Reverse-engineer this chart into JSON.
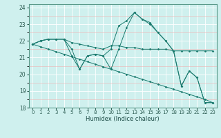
{
  "xlabel": "Humidex (Indice chaleur)",
  "bg_color": "#cff0ee",
  "grid_color": "#ffffff",
  "line_color": "#1a7a6e",
  "xlim": [
    -0.5,
    23.5
  ],
  "ylim": [
    18,
    24.2
  ],
  "yticks": [
    18,
    19,
    20,
    21,
    22,
    23,
    24
  ],
  "xticks": [
    0,
    1,
    2,
    3,
    4,
    5,
    6,
    7,
    8,
    9,
    10,
    11,
    12,
    13,
    14,
    15,
    16,
    17,
    18,
    19,
    20,
    21,
    22,
    23
  ],
  "line1_y": [
    21.8,
    22.0,
    22.1,
    22.1,
    22.1,
    21.9,
    21.8,
    21.7,
    21.6,
    21.5,
    21.7,
    21.7,
    21.6,
    21.6,
    21.5,
    21.5,
    21.5,
    21.5,
    21.4,
    21.4,
    21.4,
    21.4,
    21.4,
    21.4
  ],
  "line2_y": [
    21.8,
    22.0,
    22.1,
    22.1,
    22.1,
    21.5,
    20.3,
    21.1,
    21.2,
    21.1,
    21.5,
    22.9,
    23.2,
    23.7,
    23.3,
    23.1,
    22.5,
    22.0,
    21.4,
    19.3,
    20.2,
    19.8,
    18.3,
    18.3
  ],
  "line3_y": [
    21.8,
    22.0,
    22.1,
    22.1,
    22.1,
    21.1,
    20.3,
    21.1,
    21.2,
    21.1,
    20.3,
    21.5,
    22.8,
    23.7,
    23.3,
    23.0,
    22.5,
    22.0,
    21.4,
    19.3,
    20.2,
    19.8,
    18.3,
    18.3
  ],
  "line4_y": [
    21.8,
    21.65,
    21.5,
    21.35,
    21.2,
    21.05,
    20.9,
    20.75,
    20.6,
    20.45,
    20.3,
    20.15,
    20.0,
    19.85,
    19.7,
    19.55,
    19.4,
    19.25,
    19.1,
    18.95,
    18.8,
    18.65,
    18.5,
    18.3
  ]
}
